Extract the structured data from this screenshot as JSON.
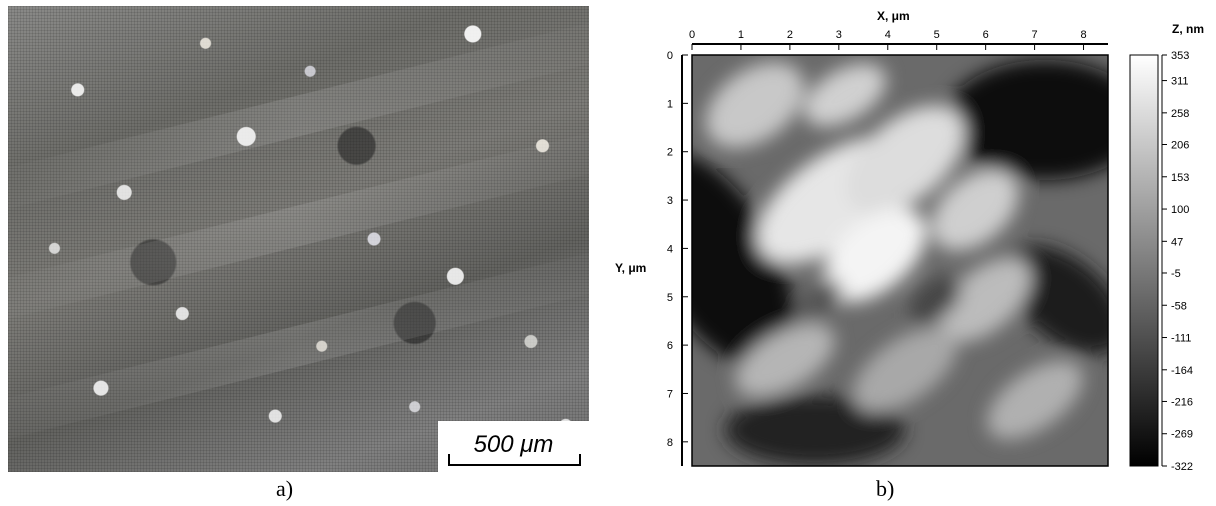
{
  "panel_a": {
    "caption": "a)",
    "scale_bar_value": "500",
    "scale_bar_unit": "μm"
  },
  "panel_b": {
    "caption": "b)"
  },
  "chart_data": {
    "type": "heatmap",
    "xlabel": "X, μm",
    "ylabel": "Y, μm",
    "colorbar_label": "Z, nm",
    "xticks": [
      "0",
      "1",
      "2",
      "3",
      "4",
      "5",
      "6",
      "7",
      "8"
    ],
    "yticks": [
      "0",
      "1",
      "2",
      "3",
      "4",
      "5",
      "6",
      "7",
      "8"
    ],
    "xlim": [
      0,
      8.5
    ],
    "ylim": [
      0,
      8.5
    ],
    "colorbar_ticks": [
      "353",
      "311",
      "258",
      "206",
      "153",
      "100",
      "47",
      "-5",
      "-58",
      "-111",
      "-164",
      "-216",
      "-269",
      "-322"
    ],
    "zlim": [
      -322,
      353
    ],
    "colormap": "grayscale"
  }
}
